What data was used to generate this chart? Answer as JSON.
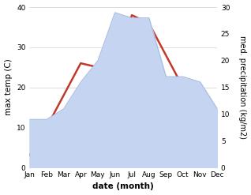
{
  "months": [
    "Jan",
    "Feb",
    "Mar",
    "Apr",
    "May",
    "Jun",
    "Jul",
    "Aug",
    "Sep",
    "Oct",
    "Nov",
    "Dec"
  ],
  "temperature": [
    3,
    10,
    18,
    26,
    25,
    25,
    38,
    36,
    28,
    20,
    12,
    8
  ],
  "precipitation": [
    9,
    9,
    11,
    16,
    20,
    29,
    28,
    28,
    17,
    17,
    16,
    11
  ],
  "temp_color": "#c0392b",
  "precip_fill_color": "#c5d4f0",
  "precip_line_color": "#a0b4d8",
  "ylim_temp": [
    0,
    40
  ],
  "ylim_precip": [
    0,
    30
  ],
  "xlabel": "date (month)",
  "ylabel_left": "max temp (C)",
  "ylabel_right": "med. precipitation (kg/m2)",
  "bg_color": "#ffffff",
  "grid_color": "#d0d0d0",
  "label_fontsize": 7.5,
  "tick_fontsize": 6.5
}
